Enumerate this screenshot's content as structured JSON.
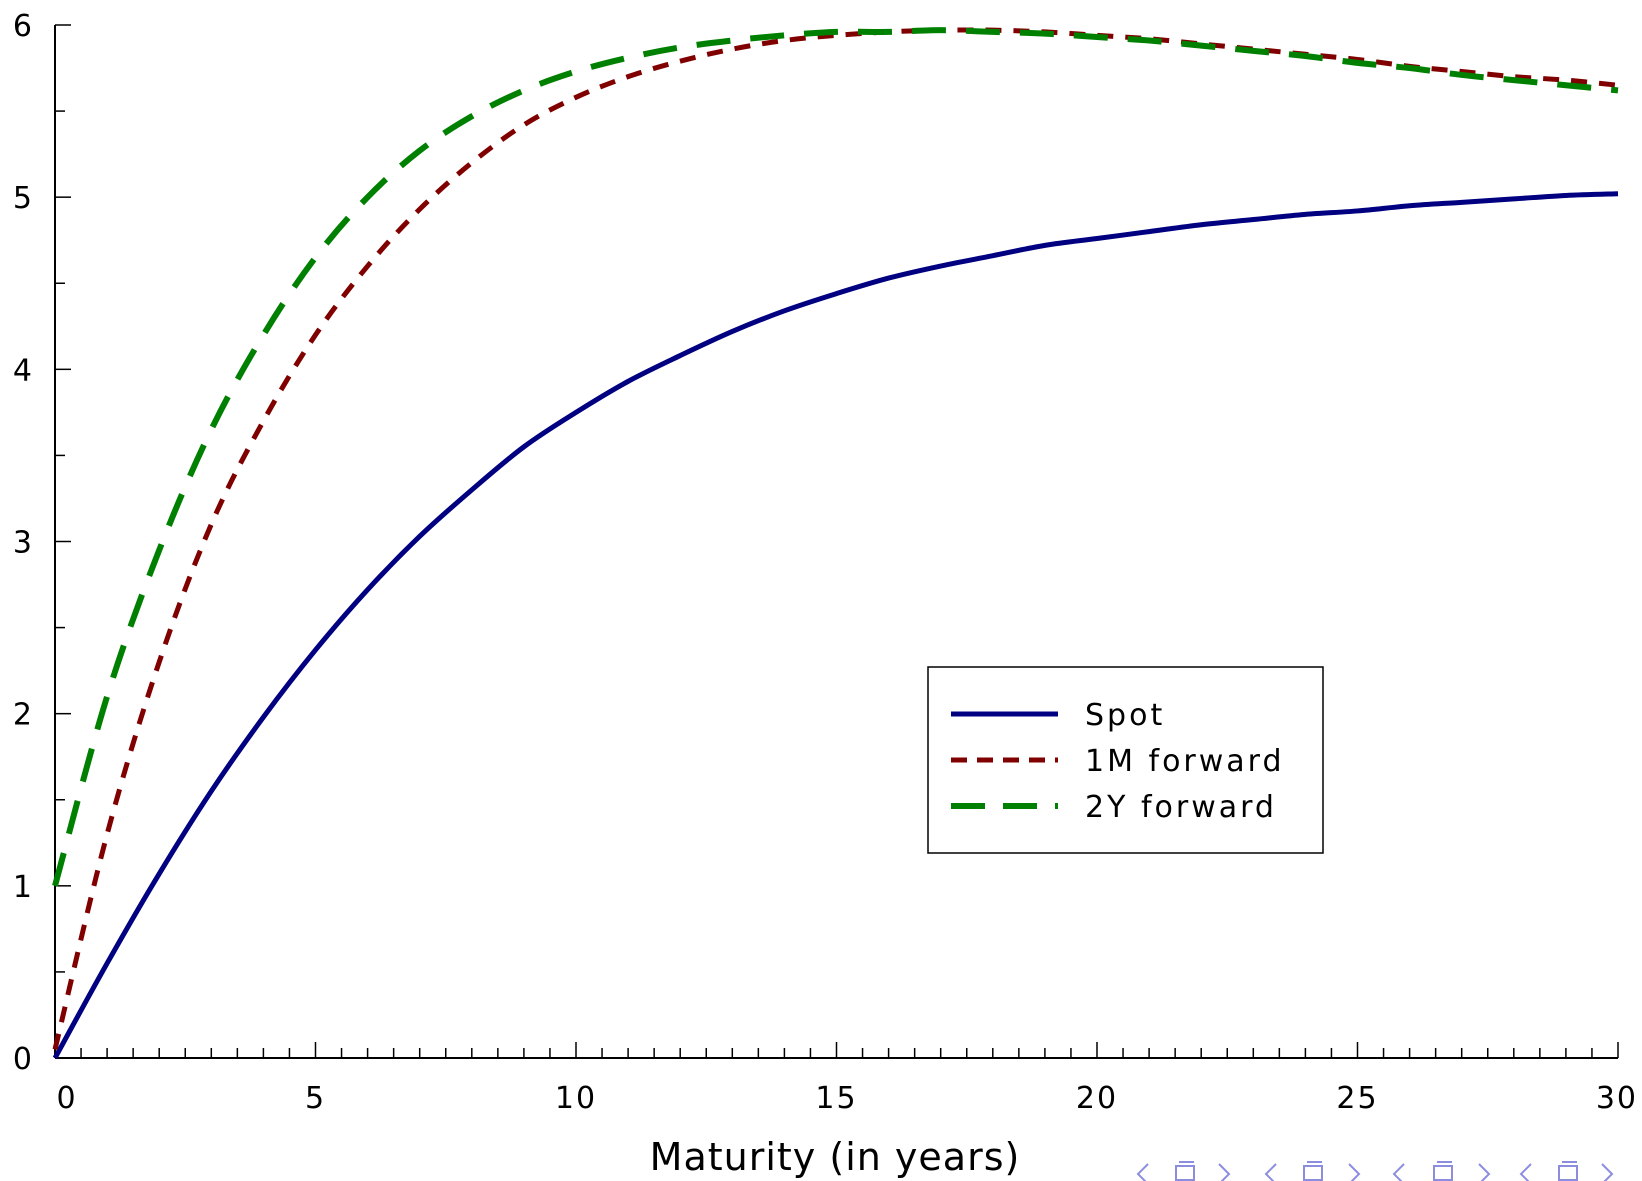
{
  "chart_data": {
    "type": "line",
    "title": "",
    "xlabel": "Maturity (in years)",
    "ylabel": "",
    "xlim": [
      0,
      30
    ],
    "ylim": [
      0,
      6
    ],
    "x_ticks": [
      "0",
      "5",
      "10",
      "15",
      "20",
      "25",
      "30"
    ],
    "x_tick_values": [
      0,
      5,
      10,
      15,
      20,
      25,
      30
    ],
    "y_ticks": [
      "0",
      "1",
      "2",
      "3",
      "4",
      "5",
      "6"
    ],
    "y_tick_values": [
      0,
      1,
      2,
      3,
      4,
      5,
      6
    ],
    "x_minor_step": 0.5,
    "y_minor_step": 0.5,
    "grid": false,
    "legend_position": "center-right",
    "x": [
      0,
      1,
      2,
      3,
      4,
      5,
      6,
      7,
      8,
      9,
      10,
      11,
      12,
      13,
      14,
      15,
      16,
      17,
      18,
      19,
      20,
      21,
      22,
      23,
      24,
      25,
      26,
      27,
      28,
      29,
      30
    ],
    "series": [
      {
        "name": "Spot",
        "color": "#000080",
        "dash": "solid",
        "values": [
          0.0,
          0.55,
          1.07,
          1.55,
          1.98,
          2.37,
          2.72,
          3.03,
          3.3,
          3.55,
          3.75,
          3.93,
          4.08,
          4.22,
          4.34,
          4.44,
          4.53,
          4.6,
          4.66,
          4.72,
          4.76,
          4.8,
          4.84,
          4.87,
          4.9,
          4.92,
          4.95,
          4.97,
          4.99,
          5.01,
          5.02
        ]
      },
      {
        "name": "1M forward",
        "color": "#800000",
        "dash": "short",
        "values": [
          0.05,
          1.3,
          2.3,
          3.1,
          3.7,
          4.2,
          4.6,
          4.93,
          5.2,
          5.42,
          5.58,
          5.7,
          5.79,
          5.86,
          5.91,
          5.94,
          5.96,
          5.97,
          5.97,
          5.96,
          5.94,
          5.92,
          5.89,
          5.86,
          5.83,
          5.8,
          5.76,
          5.73,
          5.7,
          5.68,
          5.65
        ]
      },
      {
        "name": "2Y forward",
        "color": "#008000",
        "dash": "long",
        "values": [
          1.0,
          2.1,
          2.95,
          3.65,
          4.2,
          4.65,
          5.0,
          5.27,
          5.47,
          5.62,
          5.73,
          5.81,
          5.87,
          5.91,
          5.94,
          5.96,
          5.96,
          5.97,
          5.96,
          5.95,
          5.93,
          5.91,
          5.88,
          5.85,
          5.82,
          5.78,
          5.75,
          5.71,
          5.68,
          5.65,
          5.62
        ]
      }
    ]
  }
}
